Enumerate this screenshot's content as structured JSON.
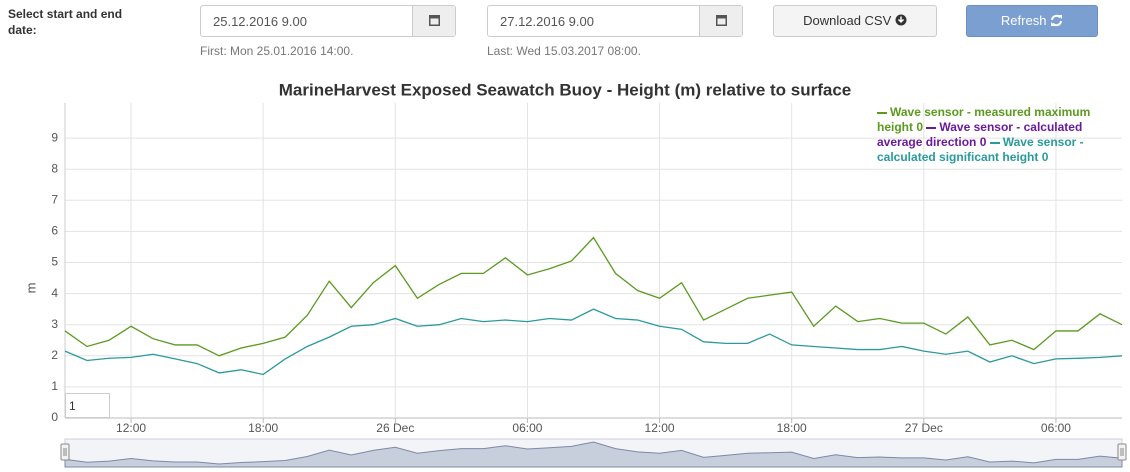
{
  "form": {
    "label": "Select start and end date:",
    "start": "25.12.2016 9.00",
    "end": "27.12.2016 9.00",
    "first": "First: Mon 25.01.2016 14:00.",
    "last": "Last: Wed 15.03.2017 08:00.",
    "download": "Download CSV",
    "refresh": "Refresh"
  },
  "range_input": "1",
  "chart_data": {
    "type": "line",
    "title": "MarineHarvest Exposed Seawatch Buoy - Height (m) relative to surface",
    "y_label": "m",
    "categories": [
      null,
      null,
      null,
      "12:00",
      null,
      null,
      null,
      null,
      null,
      "18:00",
      null,
      null,
      null,
      null,
      null,
      "26 Dec",
      null,
      null,
      null,
      null,
      null,
      "06:00",
      null,
      null,
      null,
      null,
      null,
      "12:00",
      null,
      null,
      null,
      null,
      null,
      "18:00",
      null,
      null,
      null,
      null,
      null,
      "27 Dec",
      null,
      null,
      null,
      null,
      null,
      "06:00",
      null,
      null,
      null
    ],
    "series": [
      {
        "name": "Wave sensor - measured maximum height 0",
        "color": "#5b9a1f",
        "values": [
          2.8,
          2.3,
          2.5,
          2.95,
          2.55,
          2.35,
          2.35,
          2.0,
          2.25,
          2.4,
          2.6,
          3.3,
          4.4,
          3.55,
          4.35,
          4.9,
          3.85,
          4.3,
          4.65,
          4.65,
          5.15,
          4.6,
          4.8,
          5.05,
          5.8,
          4.65,
          4.1,
          3.85,
          4.35,
          3.15,
          3.5,
          3.85,
          3.95,
          4.05,
          2.95,
          3.6,
          3.1,
          3.2,
          3.05,
          3.05,
          2.7,
          3.25,
          2.35,
          2.5,
          2.2,
          2.8,
          2.8,
          3.35,
          3.0
        ]
      },
      {
        "name": "Wave sensor - calculated average direction 0",
        "color": "#6a1b9a",
        "values": [
          null,
          null,
          null,
          null,
          null,
          null,
          null,
          null,
          null,
          null,
          null,
          null,
          null,
          null,
          null,
          null,
          null,
          null,
          null,
          null,
          null,
          null,
          null,
          null,
          null,
          null,
          null,
          null,
          null,
          null,
          null,
          null,
          null,
          null,
          null,
          null,
          null,
          null,
          null,
          null,
          null,
          null,
          null,
          null,
          null,
          null,
          null,
          null,
          null
        ]
      },
      {
        "name": "Wave sensor - calculated significant height 0",
        "color": "#2a9a9c",
        "values": [
          2.15,
          1.85,
          1.92,
          1.95,
          2.05,
          1.9,
          1.75,
          1.45,
          1.55,
          1.4,
          1.9,
          2.3,
          2.6,
          2.95,
          3.0,
          3.2,
          2.95,
          3.0,
          3.2,
          3.1,
          3.15,
          3.1,
          3.2,
          3.15,
          3.5,
          3.2,
          3.15,
          2.95,
          2.85,
          2.45,
          2.4,
          2.4,
          2.7,
          2.35,
          2.3,
          2.25,
          2.2,
          2.2,
          2.3,
          2.15,
          2.05,
          2.15,
          1.8,
          2.0,
          1.75,
          1.9,
          1.92,
          1.95,
          2.0
        ]
      }
    ],
    "ylim": [
      0,
      10
    ],
    "yticks": [
      0,
      1,
      2,
      3,
      4,
      5,
      6,
      7,
      8,
      9
    ],
    "grid": true,
    "legend": "top-right"
  }
}
